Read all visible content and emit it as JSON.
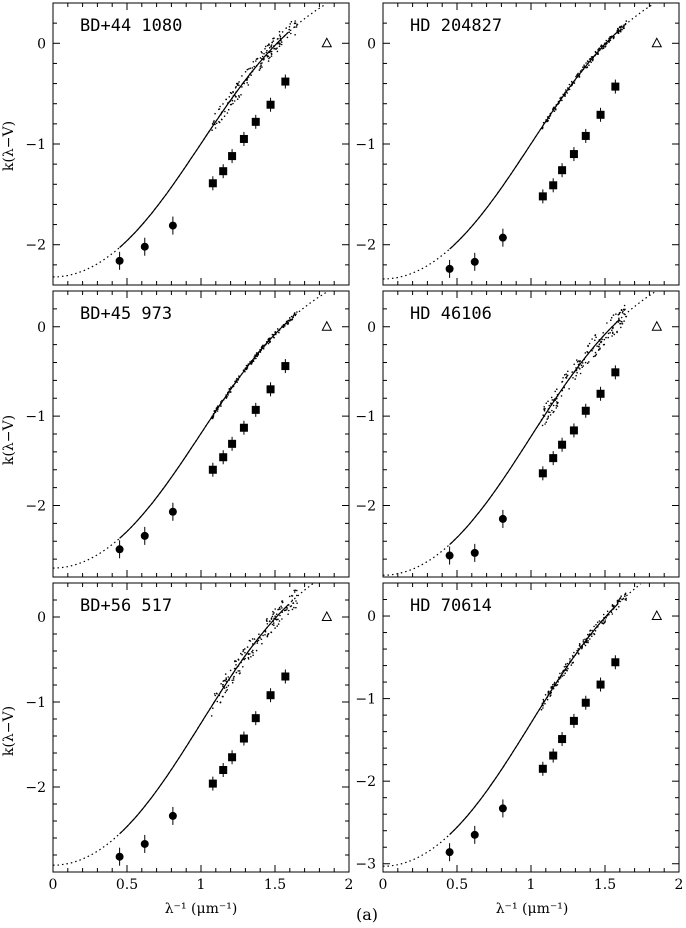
{
  "figure": {
    "ylabel": "k(λ−V)",
    "xlabel": "λ⁻¹ (μm⁻¹)",
    "caption": "(a)"
  },
  "chart_data": [
    {
      "type": "scatter",
      "title": "BD+44 1080",
      "xlim": [
        0,
        2
      ],
      "ylim": [
        -2.4,
        0.4
      ],
      "xticks": [
        0,
        0.5,
        1,
        1.5,
        2
      ],
      "yticks": [
        -2,
        -1,
        0
      ],
      "curve": {
        "ymin": -2.32,
        "slope": 1.45,
        "x_solid": [
          0.45,
          1.6
        ]
      },
      "circles": [
        {
          "x": 0.45,
          "y": -2.16
        },
        {
          "x": 0.62,
          "y": -2.02
        },
        {
          "x": 0.81,
          "y": -1.81
        }
      ],
      "squares": [
        {
          "x": 1.08,
          "y": -1.39
        },
        {
          "x": 1.15,
          "y": -1.27
        },
        {
          "x": 1.21,
          "y": -1.12
        },
        {
          "x": 1.29,
          "y": -0.95
        },
        {
          "x": 1.37,
          "y": -0.78
        },
        {
          "x": 1.47,
          "y": -0.61
        },
        {
          "x": 1.57,
          "y": -0.38
        }
      ],
      "triangle": {
        "x": 1.85,
        "y": 0
      },
      "scatter_spread": 0.09
    },
    {
      "type": "scatter",
      "title": "HD 204827",
      "xlim": [
        0,
        2
      ],
      "ylim": [
        -2.4,
        0.4
      ],
      "xticks": [
        0,
        0.5,
        1,
        1.5,
        2
      ],
      "yticks": [
        -2,
        -1,
        0
      ],
      "curve": {
        "ymin": -2.34,
        "slope": 1.47,
        "x_solid": [
          0.45,
          1.6
        ]
      },
      "circles": [
        {
          "x": 0.45,
          "y": -2.24
        },
        {
          "x": 0.62,
          "y": -2.17
        },
        {
          "x": 0.81,
          "y": -1.93
        }
      ],
      "squares": [
        {
          "x": 1.08,
          "y": -1.52
        },
        {
          "x": 1.15,
          "y": -1.41
        },
        {
          "x": 1.21,
          "y": -1.26
        },
        {
          "x": 1.29,
          "y": -1.1
        },
        {
          "x": 1.37,
          "y": -0.92
        },
        {
          "x": 1.47,
          "y": -0.71
        },
        {
          "x": 1.57,
          "y": -0.43
        }
      ],
      "triangle": {
        "x": 1.85,
        "y": 0
      },
      "scatter_spread": 0.03
    },
    {
      "type": "scatter",
      "title": "BD+45 973",
      "xlim": [
        0,
        2
      ],
      "ylim": [
        -2.8,
        0.4
      ],
      "xticks": [
        0,
        0.5,
        1,
        1.5,
        2
      ],
      "yticks": [
        -2,
        -1,
        0
      ],
      "curve": {
        "ymin": -2.7,
        "slope": 1.65,
        "x_solid": [
          0.45,
          1.6
        ]
      },
      "circles": [
        {
          "x": 0.45,
          "y": -2.49
        },
        {
          "x": 0.62,
          "y": -2.34
        },
        {
          "x": 0.81,
          "y": -2.07
        }
      ],
      "squares": [
        {
          "x": 1.08,
          "y": -1.6
        },
        {
          "x": 1.15,
          "y": -1.46
        },
        {
          "x": 1.21,
          "y": -1.31
        },
        {
          "x": 1.29,
          "y": -1.13
        },
        {
          "x": 1.37,
          "y": -0.93
        },
        {
          "x": 1.47,
          "y": -0.7
        },
        {
          "x": 1.57,
          "y": -0.44
        }
      ],
      "triangle": {
        "x": 1.85,
        "y": 0
      },
      "scatter_spread": 0.03
    },
    {
      "type": "scatter",
      "title": "HD 46106",
      "xlim": [
        0,
        2
      ],
      "ylim": [
        -2.8,
        0.4
      ],
      "xticks": [
        0,
        0.5,
        1,
        1.5,
        2
      ],
      "yticks": [
        -2,
        -1,
        0
      ],
      "curve": {
        "ymin": -2.78,
        "slope": 1.7,
        "x_solid": [
          0.45,
          1.6
        ]
      },
      "circles": [
        {
          "x": 0.45,
          "y": -2.56
        },
        {
          "x": 0.62,
          "y": -2.53
        },
        {
          "x": 0.81,
          "y": -2.15
        }
      ],
      "squares": [
        {
          "x": 1.08,
          "y": -1.64
        },
        {
          "x": 1.15,
          "y": -1.47
        },
        {
          "x": 1.21,
          "y": -1.32
        },
        {
          "x": 1.29,
          "y": -1.16
        },
        {
          "x": 1.37,
          "y": -0.94
        },
        {
          "x": 1.47,
          "y": -0.75
        },
        {
          "x": 1.57,
          "y": -0.51
        }
      ],
      "triangle": {
        "x": 1.85,
        "y": 0
      },
      "scatter_spread": 0.12
    },
    {
      "type": "scatter",
      "title": "BD+56 517",
      "xlim": [
        0,
        2
      ],
      "ylim": [
        -3.0,
        0.4
      ],
      "xticks": [
        0,
        0.5,
        1,
        1.5,
        2
      ],
      "yticks": [
        -2,
        -1,
        0
      ],
      "curve": {
        "ymin": -2.92,
        "slope": 1.83,
        "x_solid": [
          0.45,
          1.6
        ]
      },
      "circles": [
        {
          "x": 0.45,
          "y": -2.82
        },
        {
          "x": 0.62,
          "y": -2.67
        },
        {
          "x": 0.81,
          "y": -2.34
        }
      ],
      "squares": [
        {
          "x": 1.08,
          "y": -1.96
        },
        {
          "x": 1.15,
          "y": -1.8
        },
        {
          "x": 1.21,
          "y": -1.65
        },
        {
          "x": 1.29,
          "y": -1.43
        },
        {
          "x": 1.37,
          "y": -1.19
        },
        {
          "x": 1.47,
          "y": -0.92
        },
        {
          "x": 1.57,
          "y": -0.7
        }
      ],
      "triangle": {
        "x": 1.85,
        "y": 0
      },
      "scatter_spread": 0.12
    },
    {
      "type": "scatter",
      "title": "HD 70614",
      "xlim": [
        0,
        2
      ],
      "ylim": [
        -3.1,
        0.4
      ],
      "xticks": [
        0,
        0.5,
        1,
        1.5,
        2
      ],
      "yticks": [
        -3,
        -2,
        -1,
        0
      ],
      "curve": {
        "ymin": -3.03,
        "slope": 1.9,
        "x_solid": [
          0.45,
          1.6
        ]
      },
      "circles": [
        {
          "x": 0.45,
          "y": -2.86
        },
        {
          "x": 0.62,
          "y": -2.65
        },
        {
          "x": 0.81,
          "y": -2.33
        }
      ],
      "squares": [
        {
          "x": 1.08,
          "y": -1.85
        },
        {
          "x": 1.15,
          "y": -1.69
        },
        {
          "x": 1.21,
          "y": -1.49
        },
        {
          "x": 1.29,
          "y": -1.27
        },
        {
          "x": 1.37,
          "y": -1.05
        },
        {
          "x": 1.47,
          "y": -0.83
        },
        {
          "x": 1.57,
          "y": -0.56
        }
      ],
      "triangle": {
        "x": 1.85,
        "y": 0
      },
      "scatter_spread": 0.06
    }
  ]
}
